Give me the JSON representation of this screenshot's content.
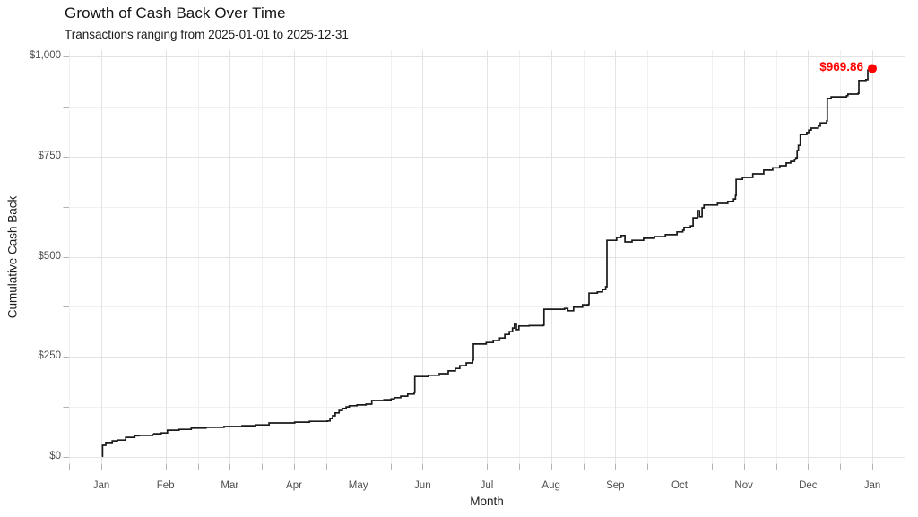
{
  "header": {
    "title": "Growth of Cash Back Over Time",
    "subtitle": "Transactions ranging from 2025-01-01 to 2025-12-31"
  },
  "chart_data": {
    "type": "line",
    "title": "Growth of Cash Back Over Time",
    "subtitle": "Transactions ranging from 2025-01-01 to 2025-12-31",
    "xlabel": "Month",
    "ylabel": "Cumulative Cash Back",
    "x_tick_labels": [
      "Jan",
      "Feb",
      "Mar",
      "Apr",
      "May",
      "Jun",
      "Jul",
      "Aug",
      "Sep",
      "Oct",
      "Nov",
      "Dec",
      "Jan"
    ],
    "y_ticks": [
      {
        "label": "$0",
        "value": 0
      },
      {
        "label": "$250",
        "value": 250
      },
      {
        "label": "$500",
        "value": 500
      },
      {
        "label": "$750",
        "value": 750
      },
      {
        "label": "$1,000",
        "value": 1000
      }
    ],
    "ylim": [
      0,
      1000
    ],
    "xlim_months": [
      0,
      12
    ],
    "grid": "major-and-minor",
    "legend": "none",
    "line_color": "#1a1a1a",
    "annotation": {
      "label": "$969.86",
      "value": 969.86,
      "x_month": 12,
      "color": "#ff0000"
    },
    "series": [
      {
        "name": "cumulative-cash-back",
        "step": true,
        "points": [
          [
            0.01,
            2
          ],
          [
            0.02,
            29
          ],
          [
            0.07,
            36
          ],
          [
            0.17,
            40
          ],
          [
            0.25,
            42
          ],
          [
            0.38,
            49
          ],
          [
            0.52,
            53
          ],
          [
            0.59,
            54
          ],
          [
            0.8,
            56
          ],
          [
            0.82,
            58
          ],
          [
            0.93,
            60
          ],
          [
            1.03,
            67
          ],
          [
            1.21,
            69
          ],
          [
            1.4,
            72
          ],
          [
            1.63,
            74
          ],
          [
            1.91,
            76
          ],
          [
            2.19,
            78
          ],
          [
            2.4,
            80
          ],
          [
            2.61,
            85
          ],
          [
            3.01,
            87
          ],
          [
            3.24,
            89
          ],
          [
            3.52,
            90
          ],
          [
            3.56,
            96
          ],
          [
            3.6,
            103
          ],
          [
            3.64,
            110
          ],
          [
            3.7,
            116
          ],
          [
            3.75,
            121
          ],
          [
            3.81,
            125
          ],
          [
            3.86,
            128
          ],
          [
            3.98,
            130
          ],
          [
            4.12,
            132
          ],
          [
            4.21,
            141
          ],
          [
            4.4,
            143
          ],
          [
            4.51,
            145
          ],
          [
            4.56,
            148
          ],
          [
            4.66,
            152
          ],
          [
            4.77,
            157
          ],
          [
            4.87,
            161
          ],
          [
            4.88,
            201
          ],
          [
            5.09,
            204
          ],
          [
            5.26,
            208
          ],
          [
            5.4,
            215
          ],
          [
            5.51,
            221
          ],
          [
            5.58,
            228
          ],
          [
            5.68,
            235
          ],
          [
            5.78,
            242
          ],
          [
            5.79,
            282
          ],
          [
            5.99,
            286
          ],
          [
            6.1,
            291
          ],
          [
            6.2,
            297
          ],
          [
            6.28,
            306
          ],
          [
            6.35,
            313
          ],
          [
            6.4,
            322
          ],
          [
            6.43,
            331
          ],
          [
            6.46,
            318
          ],
          [
            6.5,
            327
          ],
          [
            6.66,
            328
          ],
          [
            6.88,
            329
          ],
          [
            6.89,
            369
          ],
          [
            7.07,
            369
          ],
          [
            7.21,
            371
          ],
          [
            7.26,
            365
          ],
          [
            7.35,
            374
          ],
          [
            7.49,
            380
          ],
          [
            7.58,
            381
          ],
          [
            7.59,
            409
          ],
          [
            7.72,
            412
          ],
          [
            7.8,
            418
          ],
          [
            7.85,
            425
          ],
          [
            7.87,
            541
          ],
          [
            8.02,
            548
          ],
          [
            8.09,
            553
          ],
          [
            8.15,
            537
          ],
          [
            8.26,
            541
          ],
          [
            8.44,
            546
          ],
          [
            8.61,
            550
          ],
          [
            8.78,
            555
          ],
          [
            8.96,
            562
          ],
          [
            9.05,
            566
          ],
          [
            9.07,
            573
          ],
          [
            9.17,
            577
          ],
          [
            9.21,
            597
          ],
          [
            9.28,
            615
          ],
          [
            9.31,
            600
          ],
          [
            9.35,
            622
          ],
          [
            9.38,
            629
          ],
          [
            9.59,
            633
          ],
          [
            9.75,
            638
          ],
          [
            9.84,
            644
          ],
          [
            9.87,
            653
          ],
          [
            9.88,
            693
          ],
          [
            9.98,
            698
          ],
          [
            10.14,
            707
          ],
          [
            10.31,
            716
          ],
          [
            10.45,
            722
          ],
          [
            10.56,
            727
          ],
          [
            10.66,
            734
          ],
          [
            10.73,
            738
          ],
          [
            10.79,
            743
          ],
          [
            10.81,
            747
          ],
          [
            10.83,
            765
          ],
          [
            10.85,
            778
          ],
          [
            10.88,
            805
          ],
          [
            10.98,
            810
          ],
          [
            11.01,
            816
          ],
          [
            11.05,
            821
          ],
          [
            11.16,
            826
          ],
          [
            11.19,
            834
          ],
          [
            11.29,
            839
          ],
          [
            11.3,
            895
          ],
          [
            11.36,
            899
          ],
          [
            11.6,
            902
          ],
          [
            11.62,
            906
          ],
          [
            11.78,
            908
          ],
          [
            11.79,
            940
          ],
          [
            11.9,
            942
          ],
          [
            11.93,
            966
          ],
          [
            12.0,
            969.86
          ]
        ]
      }
    ]
  }
}
